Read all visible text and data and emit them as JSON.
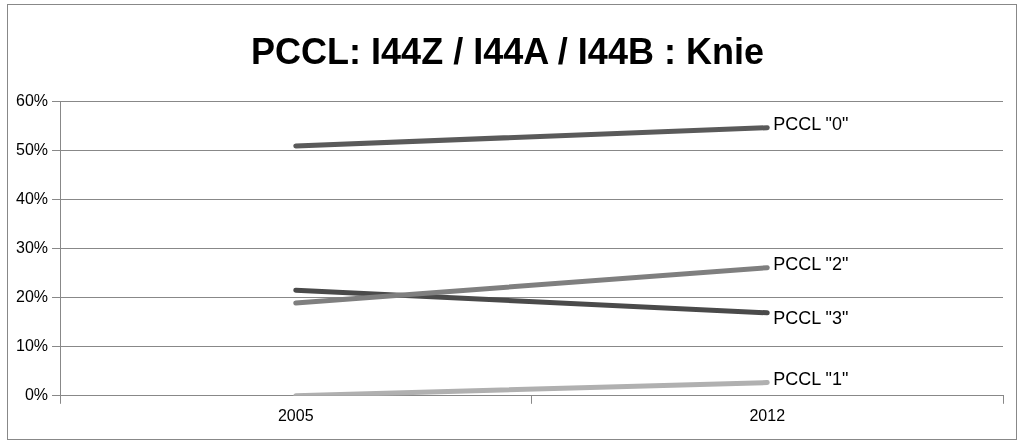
{
  "chart_data": {
    "type": "line",
    "title": "PCCL: I44Z / I44A / I44B : Knie",
    "categories": [
      "2005",
      "2012"
    ],
    "series": [
      {
        "name": "PCCL \"0\"",
        "color": "#5a5a5a",
        "values": [
          50.9,
          54.6
        ]
      },
      {
        "name": "PCCL \"2\"",
        "color": "#7f7f7f",
        "values": [
          18.9,
          26.1
        ]
      },
      {
        "name": "PCCL \"3\"",
        "color": "#4a4a4a",
        "values": [
          21.5,
          16.9
        ]
      },
      {
        "name": "PCCL \"1\"",
        "color": "#b0b0b0",
        "values": [
          0,
          2.7
        ]
      }
    ],
    "ylim": [
      0,
      60
    ],
    "yticks": [
      {
        "value": 0,
        "label": "0%"
      },
      {
        "value": 10,
        "label": "10%"
      },
      {
        "value": 20,
        "label": "20%"
      },
      {
        "value": 30,
        "label": "30%"
      },
      {
        "value": 40,
        "label": "40%"
      },
      {
        "value": 50,
        "label": "50%"
      },
      {
        "value": 60,
        "label": "60%"
      }
    ],
    "grid": "y",
    "legend": false,
    "marker": "none",
    "line_style": "solid"
  }
}
